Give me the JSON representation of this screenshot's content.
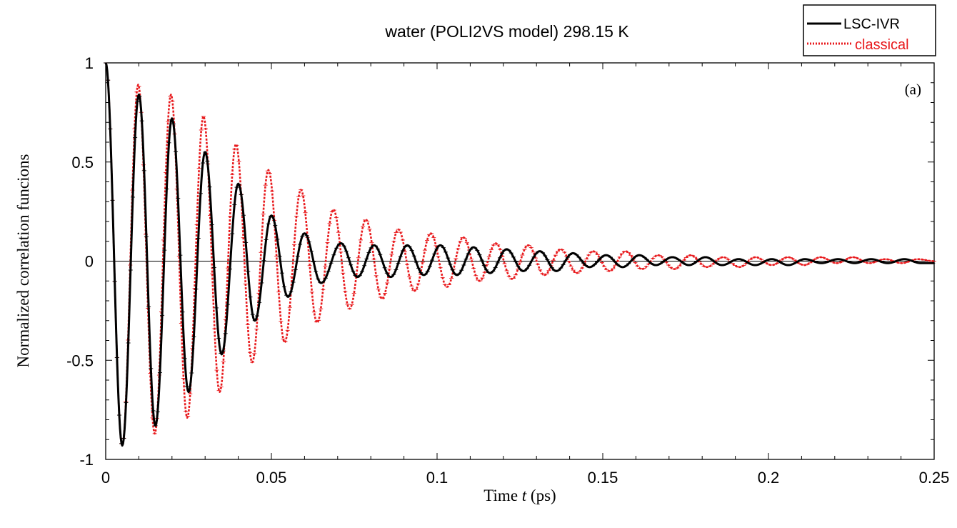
{
  "chart_data": {
    "type": "line",
    "title": "water (POLI2VS model) 298.15 K",
    "panel_label": "(a)",
    "xlabel_prefix": "Time ",
    "xlabel_var": "t",
    "xlabel_suffix": " (ps)",
    "ylabel": "Normalized correlation funcions",
    "xlim": [
      0,
      0.25
    ],
    "ylim": [
      -1,
      1
    ],
    "xticks": [
      0,
      0.05,
      0.1,
      0.15,
      0.2,
      0.25
    ],
    "xtick_labels": [
      "0",
      "0.05",
      "0.1",
      "0.15",
      "0.2",
      "0.25"
    ],
    "yticks": [
      -1,
      -0.5,
      0,
      0.5,
      1
    ],
    "ytick_labels": [
      "-1",
      "-0.5",
      "0",
      "0.5",
      "1"
    ],
    "grid": false,
    "legend_position": "top-right",
    "series": [
      {
        "name": "LSC-IVR",
        "color": "#000000",
        "dash": "solid",
        "period": 0.0101,
        "x": [
          0,
          0.005,
          0.01,
          0.015,
          0.02,
          0.025,
          0.03,
          0.035,
          0.04,
          0.045,
          0.05,
          0.055,
          0.06,
          0.065,
          0.071,
          0.076,
          0.081,
          0.086,
          0.091,
          0.096,
          0.101,
          0.106,
          0.111,
          0.116,
          0.121,
          0.126,
          0.131,
          0.136,
          0.141,
          0.146,
          0.151,
          0.156,
          0.161,
          0.166,
          0.171,
          0.176,
          0.181,
          0.186,
          0.191,
          0.196,
          0.201,
          0.206,
          0.211,
          0.216,
          0.221,
          0.226,
          0.231,
          0.236,
          0.241,
          0.246,
          0.25
        ],
        "y": [
          1.0,
          -0.93,
          0.84,
          -0.83,
          0.72,
          -0.66,
          0.55,
          -0.47,
          0.39,
          -0.3,
          0.23,
          -0.18,
          0.14,
          -0.11,
          0.09,
          -0.08,
          0.08,
          -0.08,
          0.08,
          -0.07,
          0.08,
          -0.07,
          0.07,
          -0.06,
          0.06,
          -0.05,
          0.05,
          -0.05,
          0.04,
          -0.03,
          0.03,
          -0.03,
          0.03,
          -0.02,
          0.02,
          -0.02,
          0.02,
          -0.02,
          0.01,
          -0.02,
          0.01,
          -0.02,
          0.01,
          -0.01,
          0.01,
          -0.01,
          0.01,
          -0.01,
          0.01,
          -0.01,
          -0.01
        ]
      },
      {
        "name": "classical",
        "color": "#e8191c",
        "dash": "dotted",
        "period": 0.0101,
        "x": [
          0,
          0.005,
          0.0098,
          0.0148,
          0.0197,
          0.0246,
          0.0295,
          0.0344,
          0.0393,
          0.0442,
          0.0491,
          0.054,
          0.0589,
          0.0638,
          0.0687,
          0.0736,
          0.0785,
          0.0834,
          0.0883,
          0.0932,
          0.0981,
          0.103,
          0.1079,
          0.1128,
          0.1177,
          0.1226,
          0.1275,
          0.1324,
          0.1373,
          0.1422,
          0.1471,
          0.152,
          0.1569,
          0.1618,
          0.1667,
          0.1716,
          0.1765,
          0.1814,
          0.1863,
          0.1912,
          0.1961,
          0.201,
          0.2059,
          0.2108,
          0.2157,
          0.2206,
          0.2255,
          0.2304,
          0.2353,
          0.2402,
          0.2451,
          0.25
        ],
        "y": [
          1.0,
          -0.93,
          0.89,
          -0.87,
          0.84,
          -0.79,
          0.73,
          -0.66,
          0.59,
          -0.51,
          0.46,
          -0.41,
          0.36,
          -0.31,
          0.26,
          -0.24,
          0.21,
          -0.19,
          0.16,
          -0.15,
          0.14,
          -0.13,
          0.12,
          -0.1,
          0.09,
          -0.09,
          0.08,
          -0.07,
          0.06,
          -0.06,
          0.05,
          -0.05,
          0.05,
          -0.04,
          0.03,
          -0.04,
          0.03,
          -0.03,
          0.02,
          -0.03,
          0.02,
          -0.02,
          0.02,
          -0.02,
          0.02,
          -0.01,
          0.02,
          -0.01,
          0.01,
          -0.01,
          0.01,
          0.0
        ]
      }
    ]
  }
}
